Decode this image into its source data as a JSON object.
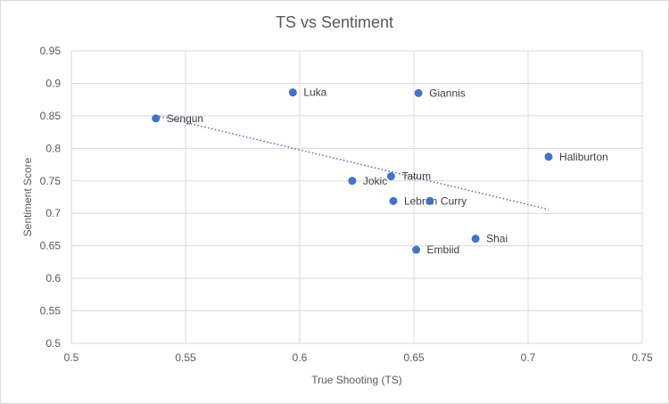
{
  "chart_data": {
    "type": "scatter",
    "title": "TS vs Sentiment",
    "xlabel": "True Shooting (TS)",
    "ylabel": "Sentiment Score",
    "xlim": [
      0.5,
      0.75
    ],
    "ylim": [
      0.5,
      0.95
    ],
    "x_ticks": [
      "0.5",
      "0.55",
      "0.6",
      "0.65",
      "0.7",
      "0.75"
    ],
    "y_ticks": [
      "0.5",
      "0.55",
      "0.6",
      "0.65",
      "0.7",
      "0.75",
      "0.8",
      "0.85",
      "0.9",
      "0.95"
    ],
    "grid": true,
    "marker_color": "#4472C4",
    "trendline": {
      "type": "linear",
      "style": "dotted",
      "color": "#4472C4"
    },
    "points": [
      {
        "label": "Sengun",
        "x": 0.537,
        "y": 0.846
      },
      {
        "label": "Luka",
        "x": 0.597,
        "y": 0.886
      },
      {
        "label": "Giannis",
        "x": 0.652,
        "y": 0.885
      },
      {
        "label": "Haliburton",
        "x": 0.709,
        "y": 0.787
      },
      {
        "label": "Tatum",
        "x": 0.64,
        "y": 0.757
      },
      {
        "label": "Jokic",
        "x": 0.623,
        "y": 0.75
      },
      {
        "label": "Lebron",
        "x": 0.641,
        "y": 0.719
      },
      {
        "label": "Curry",
        "x": 0.657,
        "y": 0.719
      },
      {
        "label": "Shai",
        "x": 0.677,
        "y": 0.661
      },
      {
        "label": "Embiid",
        "x": 0.651,
        "y": 0.644
      }
    ]
  }
}
